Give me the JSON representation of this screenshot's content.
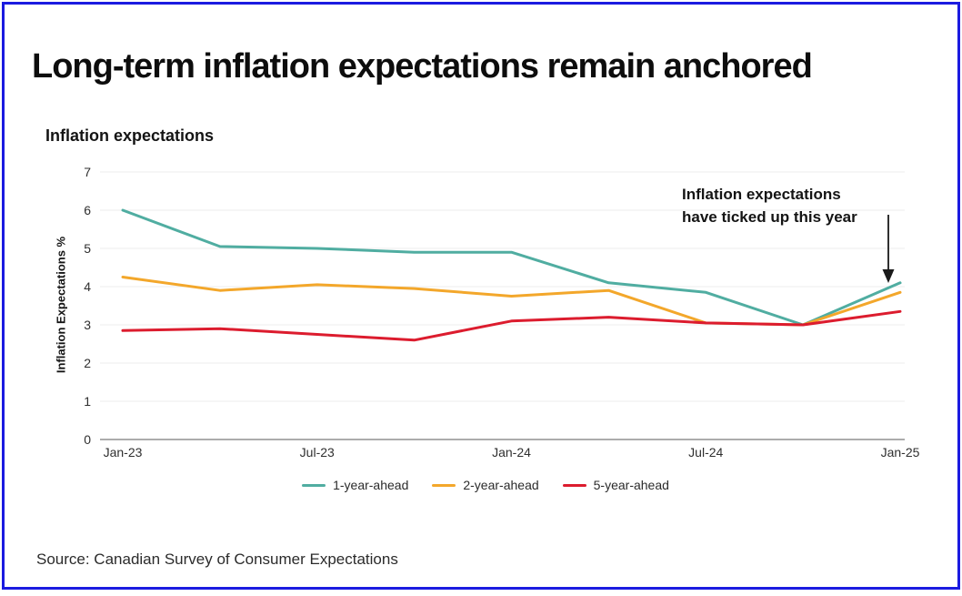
{
  "page": {
    "title": "Long-term inflation expectations remain anchored",
    "source": "Source: Canadian Survey of Consumer Expectations",
    "border_color": "#1b1be0"
  },
  "chart": {
    "subtitle": "Inflation expectations",
    "y_axis_title": "Inflation Expectations %",
    "annotation_line1": "Inflation expectations",
    "annotation_line2": "have ticked up this year"
  },
  "chart_data": {
    "type": "line",
    "title": "Inflation expectations",
    "xlabel": "",
    "ylabel": "Inflation Expectations %",
    "ylim": [
      0,
      7
    ],
    "y_ticks": [
      0,
      1,
      2,
      3,
      4,
      5,
      6,
      7
    ],
    "grid": true,
    "legend_position": "bottom",
    "categories": [
      "Jan-23",
      "Apr-23",
      "Jul-23",
      "Oct-23",
      "Jan-24",
      "Apr-24",
      "Jul-24",
      "Oct-24",
      "Jan-25"
    ],
    "x_tick_labels": [
      "Jan-23",
      "Jul-23",
      "Jan-24",
      "Jul-24",
      "Jan-25"
    ],
    "series": [
      {
        "name": "1-year-ahead",
        "color": "#50ADA1",
        "values": [
          6.0,
          5.05,
          5.0,
          4.9,
          4.9,
          4.1,
          3.85,
          3.0,
          4.1
        ]
      },
      {
        "name": "2-year-ahead",
        "color": "#F3A72B",
        "values": [
          4.25,
          3.9,
          4.05,
          3.95,
          3.75,
          3.9,
          3.05,
          3.0,
          3.85
        ]
      },
      {
        "name": "5-year-ahead",
        "color": "#DC1C2E",
        "values": [
          2.85,
          2.9,
          2.75,
          2.6,
          3.1,
          3.2,
          3.05,
          3.0,
          3.35
        ]
      }
    ],
    "annotation": "Inflation expectations have ticked up this year",
    "colors": {
      "gridline": "#ececec",
      "axis_line": "#909090",
      "annotation_arrow": "#1a1a1a"
    }
  }
}
